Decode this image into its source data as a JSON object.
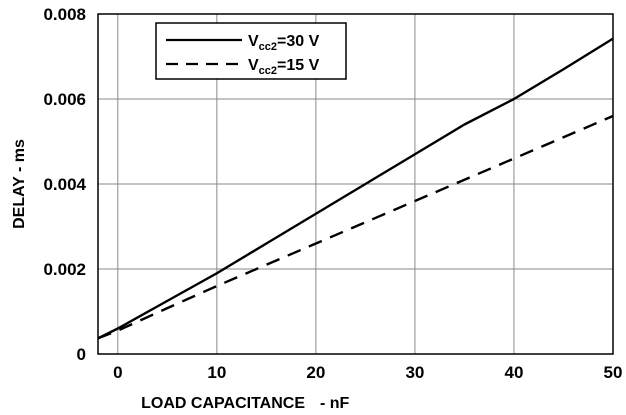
{
  "chart_data": {
    "type": "line",
    "title": "",
    "xlabel": "LOAD CAPACITANCE",
    "xlabel_unit": "- nF",
    "ylabel": "DELAY - ms",
    "xlim": [
      -2,
      50
    ],
    "ylim": [
      0,
      0.008
    ],
    "x_ticks": [
      0,
      10,
      20,
      30,
      40,
      50
    ],
    "x_tick_labels": [
      "0",
      "10",
      "20",
      "30",
      "40",
      "50"
    ],
    "y_ticks": [
      0,
      0.002,
      0.004,
      0.006,
      0.008
    ],
    "y_tick_labels": [
      "0",
      "0.002",
      "0.004",
      "0.006",
      "0.008"
    ],
    "grid": true,
    "legend_position": "top-left",
    "series": [
      {
        "name": "V_cc2=30 V",
        "legend_main": "V",
        "legend_sub": "cc2",
        "legend_rest": "=30 V",
        "style": "solid",
        "color": "#000000",
        "x": [
          -2,
          0,
          5,
          10,
          15,
          20,
          25,
          30,
          35,
          40,
          45,
          50
        ],
        "y": [
          0.00037,
          0.0006,
          0.00125,
          0.0019,
          0.0026,
          0.0033,
          0.004,
          0.0047,
          0.0054,
          0.006,
          0.0067,
          0.00742
        ]
      },
      {
        "name": "V_cc2=15 V",
        "legend_main": "V",
        "legend_sub": "cc2",
        "legend_rest": "=15 V",
        "style": "dashed",
        "color": "#000000",
        "x": [
          -2,
          0,
          5,
          10,
          15,
          20,
          25,
          30,
          35,
          40,
          45,
          50
        ],
        "y": [
          0.00037,
          0.00055,
          0.00108,
          0.0016,
          0.0021,
          0.0026,
          0.0031,
          0.0036,
          0.0041,
          0.0046,
          0.0051,
          0.0056
        ]
      }
    ]
  }
}
